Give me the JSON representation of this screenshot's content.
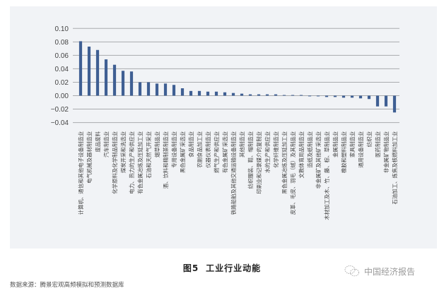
{
  "figure": {
    "number": "图5",
    "title": "工业行业动能"
  },
  "source_note": "数据来源：腾景宏观高频模拟和预测数据库",
  "watermark": {
    "icon": "wechat-icon",
    "text": "中国经济报告"
  },
  "colors": {
    "bar": "#3f5f93",
    "panel_bg": "#f1f3f6",
    "gridline": "#a9abae"
  },
  "chart_data": {
    "type": "bar",
    "title": "工业行业动能",
    "xlabel": "",
    "ylabel": "",
    "ylim": [
      -0.04,
      0.1
    ],
    "yticks": [
      "0.10",
      "0.08",
      "0.06",
      "0.04",
      "0.02",
      "0.00",
      "−0.02",
      "−0.04"
    ],
    "ytick_values": [
      0.1,
      0.08,
      0.06,
      0.04,
      0.02,
      0.0,
      -0.02,
      -0.04
    ],
    "grid": true,
    "legend": null,
    "categories": [
      "计算机、通信和其他电子设备制造业",
      "电气机械及器材制造业",
      "废品废料",
      "汽车制造业",
      "化学原料及化学制品制造业",
      "煤炭开采和洗选业",
      "电力、热力的生产和供应业",
      "有色金属冶炼及压延加工业",
      "石油和天然气开采业",
      "烟草制品业",
      "酒、饮料和精制茶制造业",
      "专用设备制造业",
      "黑色金属矿采选业",
      "食品制造业",
      "农副食品加工业",
      "仪器仪表制造业",
      "燃气生产和供应业",
      "有色金属矿采选业",
      "铁路船舶及其他交通运输设备制造业",
      "其他制造业",
      "纺织服装、鞋、帽制造业",
      "印刷业和记录媒介的复制业",
      "水的生产和供应业",
      "化学纤维制造业",
      "黑色金属冶炼及压延加工业",
      "皮革、毛皮、羽毛（绒）及其制品业",
      "文教体育用品制造业",
      "造纸及纸制品业",
      "非金属矿及其他矿采选业",
      "木材加工及木、竹、藤、棕、草制品业",
      "金属制品业",
      "橡胶和塑料制品业",
      "家具制造业",
      "通用设备制造业",
      "纺织业",
      "医药制造业",
      "非金属矿物制品业",
      "石油加工、炼焦及核燃料加工业"
    ],
    "values": [
      0.081,
      0.073,
      0.068,
      0.054,
      0.046,
      0.037,
      0.036,
      0.02,
      0.02,
      0.018,
      0.018,
      0.016,
      0.011,
      0.007,
      0.007,
      0.006,
      0.006,
      0.005,
      0.004,
      0.003,
      0.002,
      0.002,
      0.002,
      0.002,
      0.001,
      0.001,
      0.001,
      -0.001,
      -0.001,
      -0.002,
      -0.002,
      -0.003,
      -0.003,
      -0.004,
      -0.005,
      -0.016,
      -0.016,
      -0.025
    ]
  }
}
